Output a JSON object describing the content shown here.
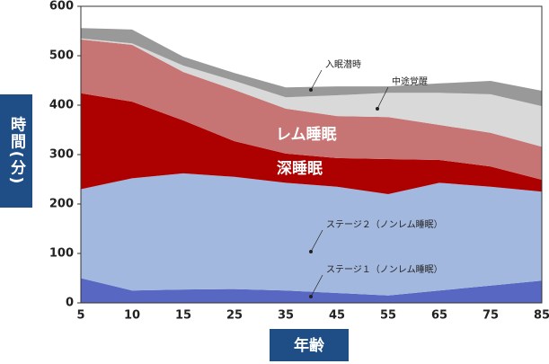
{
  "chart_data": {
    "type": "stacked-area",
    "categories": [
      "5",
      "10",
      "15",
      "25",
      "35",
      "45",
      "55",
      "65",
      "75",
      "85"
    ],
    "x_label": "年齢",
    "y_label": "時間(分)",
    "ylim": [
      0,
      600
    ],
    "yticks": [
      0,
      100,
      200,
      300,
      400,
      500,
      600
    ],
    "series": [
      {
        "name": "ステージ１（ノンレム睡眠）",
        "color": "#5867c2",
        "values": [
          50,
          25,
          27,
          28,
          25,
          20,
          15,
          25,
          35,
          45
        ]
      },
      {
        "name": "ステージ２（ノンレム睡眠）",
        "color": "#a3b8de",
        "values": [
          180,
          227,
          235,
          227,
          218,
          215,
          205,
          218,
          200,
          180
        ]
      },
      {
        "name": "深睡眠",
        "color": "#ad0000",
        "values": [
          194,
          155,
          107,
          72,
          59,
          58,
          71,
          46,
          41,
          24
        ]
      },
      {
        "name": "レム睡眠",
        "color": "#c77474",
        "values": [
          109,
          115,
          98,
          104,
          91,
          85,
          85,
          71,
          68,
          67
        ]
      },
      {
        "name": "中途覚醒",
        "color": "#d9d9d9",
        "values": [
          2,
          3,
          13,
          18,
          23,
          42,
          49,
          65,
          78,
          82
        ]
      },
      {
        "name": "入眠潜時",
        "color": "#999999",
        "values": [
          21,
          28,
          18,
          16,
          20,
          18,
          13,
          19,
          27,
          31
        ]
      }
    ]
  }
}
